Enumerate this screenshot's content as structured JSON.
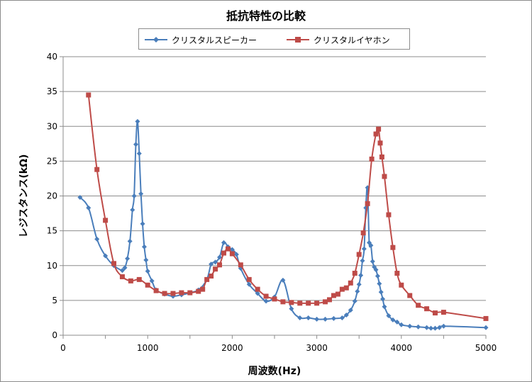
{
  "chart_data": {
    "type": "line",
    "title": "抵抗特性の比較",
    "xlabel": "周波数(Hz)",
    "ylabel": "レジスタンス(kΩ)",
    "xlim": [
      0,
      5000
    ],
    "ylim": [
      0,
      40
    ],
    "x_ticks": [
      0,
      1000,
      2000,
      3000,
      4000,
      5000
    ],
    "y_ticks": [
      0,
      5,
      10,
      15,
      20,
      25,
      30,
      35,
      40
    ],
    "grid": "horizontal",
    "legend_position": "top",
    "series": [
      {
        "name": "クリスタルスピーカー",
        "color": "#4a7ebb",
        "marker": "diamond",
        "x": [
          200,
          300,
          400,
          500,
          600,
          700,
          730,
          760,
          790,
          820,
          840,
          860,
          880,
          900,
          920,
          940,
          960,
          980,
          1000,
          1050,
          1100,
          1200,
          1300,
          1400,
          1500,
          1600,
          1700,
          1750,
          1800,
          1850,
          1900,
          1950,
          2000,
          2050,
          2100,
          2200,
          2300,
          2400,
          2500,
          2600,
          2700,
          2800,
          2900,
          3000,
          3100,
          3200,
          3300,
          3350,
          3400,
          3450,
          3480,
          3500,
          3520,
          3540,
          3560,
          3580,
          3600,
          3620,
          3640,
          3660,
          3680,
          3700,
          3720,
          3740,
          3760,
          3780,
          3800,
          3850,
          3900,
          3950,
          4000,
          4100,
          4200,
          4300,
          4350,
          4400,
          4450,
          4500,
          5000
        ],
        "values": [
          19.8,
          18.3,
          13.8,
          11.4,
          10.0,
          9.3,
          9.7,
          11.0,
          13.5,
          18.0,
          20.0,
          27.4,
          30.7,
          26.1,
          20.3,
          16.0,
          12.7,
          10.8,
          9.2,
          7.8,
          6.5,
          5.9,
          5.6,
          5.8,
          6.1,
          6.5,
          8.0,
          10.2,
          10.5,
          11.2,
          13.3,
          12.7,
          12.3,
          11.6,
          9.6,
          7.3,
          6.0,
          4.9,
          5.5,
          7.9,
          3.8,
          2.5,
          2.5,
          2.3,
          2.3,
          2.4,
          2.5,
          2.9,
          3.6,
          4.9,
          6.3,
          7.3,
          8.6,
          10.7,
          12.4,
          18.3,
          21.2,
          13.3,
          12.9,
          10.6,
          9.8,
          9.4,
          8.5,
          7.4,
          6.2,
          5.2,
          4.1,
          2.8,
          2.2,
          1.9,
          1.5,
          1.3,
          1.2,
          1.1,
          1.0,
          1.0,
          1.1,
          1.3,
          1.1
        ]
      },
      {
        "name": "クリスタルイヤホン",
        "color": "#be4b48",
        "marker": "square",
        "x": [
          300,
          400,
          500,
          600,
          700,
          800,
          900,
          1000,
          1100,
          1200,
          1300,
          1400,
          1500,
          1600,
          1650,
          1700,
          1750,
          1800,
          1850,
          1900,
          1950,
          2000,
          2100,
          2200,
          2300,
          2400,
          2500,
          2600,
          2700,
          2800,
          2900,
          3000,
          3100,
          3150,
          3200,
          3250,
          3300,
          3350,
          3400,
          3450,
          3500,
          3550,
          3600,
          3650,
          3700,
          3730,
          3750,
          3770,
          3800,
          3850,
          3900,
          3950,
          4000,
          4100,
          4200,
          4300,
          4400,
          4500,
          5000
        ],
        "values": [
          34.5,
          23.8,
          16.5,
          10.3,
          8.4,
          7.8,
          8.0,
          7.2,
          6.4,
          6.0,
          6.0,
          6.1,
          6.1,
          6.3,
          6.6,
          8.0,
          8.5,
          9.5,
          10.1,
          11.8,
          12.4,
          11.7,
          10.1,
          8.0,
          6.6,
          5.6,
          5.2,
          4.8,
          4.7,
          4.6,
          4.6,
          4.6,
          4.8,
          5.1,
          5.7,
          5.9,
          6.6,
          6.8,
          7.5,
          8.9,
          11.6,
          14.7,
          18.9,
          25.3,
          28.9,
          29.6,
          27.6,
          25.6,
          22.8,
          17.3,
          12.6,
          8.9,
          7.2,
          5.7,
          4.3,
          3.8,
          3.2,
          3.3,
          2.4
        ]
      }
    ]
  }
}
